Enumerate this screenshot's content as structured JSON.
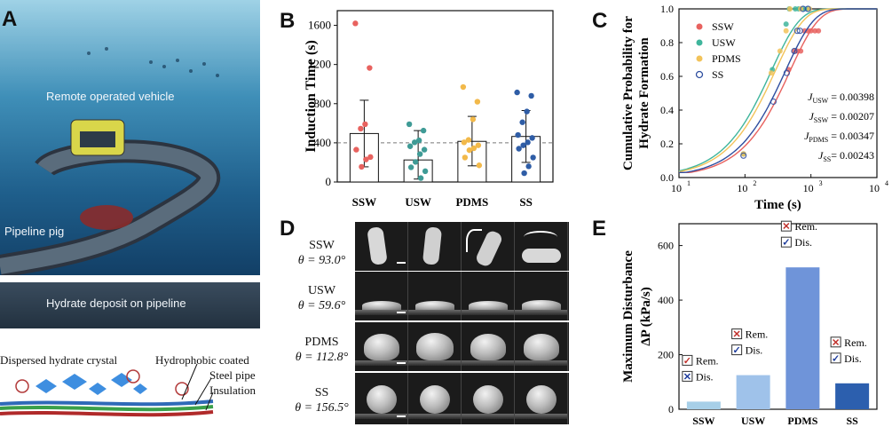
{
  "panel_labels": {
    "a": "A",
    "b": "B",
    "c": "C",
    "d": "D",
    "e": "E"
  },
  "panel_a": {
    "rov_label": "Remote operated vehicle",
    "pig_label": "Pipeline pig",
    "deposit_label": "Hydrate deposit on pipeline",
    "crystal_label": "Dispersed hydrate crystal",
    "coat_label": "Hydrophobic coated",
    "steel_label": "Steel pipe",
    "insulation_label": "Insulation"
  },
  "chart_b": {
    "type": "bar",
    "ylabel": "Induction Time (s)",
    "categories": [
      "SSW",
      "USW",
      "PDMS",
      "SS"
    ],
    "values": [
      495,
      225,
      415,
      465
    ],
    "errors_upper": [
      835,
      525,
      670,
      730
    ],
    "errors_lower": [
      155,
      30,
      165,
      200
    ],
    "reference_line": 400,
    "ylim": [
      0,
      1750
    ],
    "yticks": [
      "0",
      "400",
      "800",
      "1200",
      "1600"
    ],
    "colors": [
      "#e8625f",
      "#3f9b96",
      "#f2b94a",
      "#2f5da6"
    ],
    "points": [
      [
        1620,
        1165,
        590,
        545,
        330,
        255,
        230,
        155
      ],
      [
        590,
        525,
        425,
        405,
        365,
        330,
        285,
        205,
        150,
        110,
        40
      ],
      [
        970,
        820,
        640,
        430,
        405,
        375,
        345,
        325,
        250,
        170
      ],
      [
        915,
        880,
        720,
        610,
        480,
        450,
        405,
        375,
        340,
        250,
        160,
        90
      ]
    ]
  },
  "chart_c": {
    "type": "line",
    "ylabel_line1": "Cumulative Probability for",
    "ylabel_line2": "Hydrate Formation",
    "xlabel": "Time (s)",
    "xlim": [
      10,
      10000
    ],
    "ylim": [
      0,
      1.0
    ],
    "yticks": [
      "0.0",
      "0.2",
      "0.4",
      "0.6",
      "0.8",
      "1.0"
    ],
    "xticks": [
      "10",
      "10",
      "10",
      "10"
    ],
    "xtick_exponents": [
      "1",
      "2",
      "3",
      "4"
    ],
    "series": [
      {
        "name": "SSW",
        "color": "#e8625f",
        "rate": 0.00207,
        "points_x": [
          95,
          460,
          560,
          620,
          700,
          800,
          900,
          1000,
          1150,
          1300
        ],
        "points_y": [
          0.14,
          0.64,
          0.75,
          0.75,
          0.75,
          0.87,
          0.87,
          0.87,
          0.87,
          0.87
        ]
      },
      {
        "name": "USW",
        "color": "#3fb59c",
        "rate": 0.00398,
        "points_x": [
          95,
          260,
          420,
          470,
          580,
          650,
          770,
          870
        ],
        "points_y": [
          0.14,
          0.64,
          0.91,
          1.0,
          1.0,
          1.0,
          1.0,
          1.0
        ]
      },
      {
        "name": "PDMS",
        "color": "#f2c35a",
        "rate": 0.00347,
        "points_x": [
          95,
          250,
          340,
          420,
          480,
          700,
          950
        ],
        "points_y": [
          0.14,
          0.62,
          0.75,
          0.87,
          1.0,
          1.0,
          1.0
        ]
      },
      {
        "name": "SS",
        "color": "#2f4fa0",
        "rate": 0.00243,
        "points_x": [
          95,
          270,
          430,
          560,
          620,
          680,
          760,
          900
        ],
        "points_y": [
          0.13,
          0.45,
          0.62,
          0.75,
          0.87,
          0.87,
          1.0,
          1.0
        ]
      }
    ],
    "annotations": [
      {
        "main": "J",
        "sub": "USW",
        "value": " = 0.00398"
      },
      {
        "main": "J",
        "sub": "SSW",
        "value": " = 0.00207"
      },
      {
        "main": "J",
        "sub": "PDMS",
        "value": " = 0.00347"
      },
      {
        "main": "J",
        "sub": "SS",
        "value": "= 0.00243"
      }
    ]
  },
  "panel_d": {
    "rows": [
      {
        "name": "SSW",
        "angle": "θ = 93.0°"
      },
      {
        "name": "USW",
        "angle": "θ = 59.6°"
      },
      {
        "name": "PDMS",
        "angle": "θ = 112.8°"
      },
      {
        "name": "SS",
        "angle": "θ = 156.5°"
      }
    ]
  },
  "chart_e": {
    "type": "bar",
    "ylabel_line1": "Maximum Disturbance",
    "ylabel_line2": "ΔP (kPa/s)",
    "categories": [
      "SSW",
      "USW",
      "PDMS",
      "SS"
    ],
    "values": [
      28,
      125,
      520,
      95
    ],
    "ylim": [
      0,
      680
    ],
    "yticks": [
      "0",
      "200",
      "400",
      "600"
    ],
    "colors": [
      "#a7cfe8",
      "#9fc2ea",
      "#6f94d9",
      "#2c5fae"
    ],
    "legend_items": [
      {
        "rem_label": "Rem.",
        "dis_label": "Dis.",
        "rem_mark": "✓",
        "dis_mark": "✕"
      },
      {
        "rem_label": "Rem.",
        "dis_label": "Dis.",
        "rem_mark": "✕",
        "dis_mark": "✓"
      },
      {
        "rem_label": "Rem.",
        "dis_label": "Dis.",
        "rem_mark": "✕",
        "dis_mark": "✓"
      },
      {
        "rem_label": "Rem.",
        "dis_label": "Dis.",
        "rem_mark": "✕",
        "dis_mark": "✓"
      }
    ]
  }
}
